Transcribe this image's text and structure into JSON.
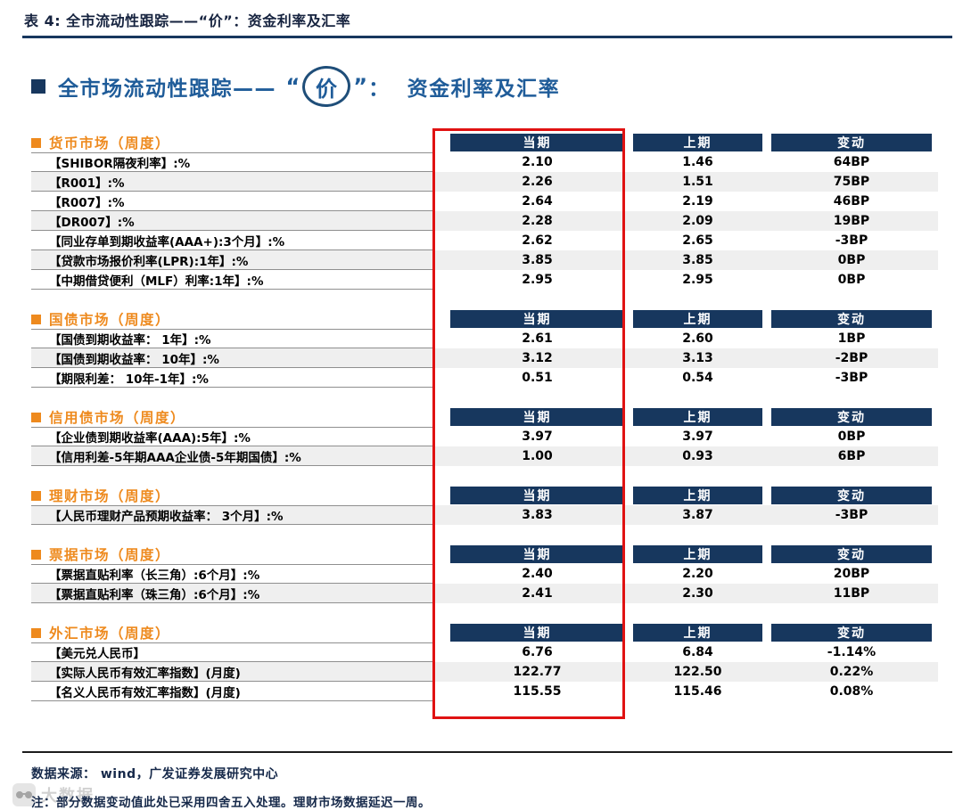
{
  "page": {
    "table_caption": "表 4:  全市流动性跟踪——“价”：资金利率及汇率",
    "heading": {
      "prefix": "全市场流动性跟踪—— ",
      "quote_open": "“",
      "circled_word": "价",
      "quote_close": "”",
      "suffix": "：  资金利率及汇率"
    }
  },
  "columns": [
    "当期",
    "上期",
    "变动"
  ],
  "sections": [
    {
      "title": "货币市场（周度）",
      "rows": [
        {
          "label": "【SHIBOR隔夜利率】:%",
          "current": "2.10",
          "previous": "1.46",
          "change": "64BP",
          "shaded": false
        },
        {
          "label": "【R001】:%",
          "current": "2.26",
          "previous": "1.51",
          "change": "75BP",
          "shaded": true
        },
        {
          "label": "【R007】:%",
          "current": "2.64",
          "previous": "2.19",
          "change": "46BP",
          "shaded": false
        },
        {
          "label": "【DR007】:%",
          "current": "2.28",
          "previous": "2.09",
          "change": "19BP",
          "shaded": true
        },
        {
          "label": "【同业存单到期收益率(AAA+):3个月】:%",
          "current": "2.62",
          "previous": "2.65",
          "change": "-3BP",
          "shaded": false
        },
        {
          "label": "【贷款市场报价利率(LPR):1年】:%",
          "current": "3.85",
          "previous": "3.85",
          "change": "0BP",
          "shaded": true
        },
        {
          "label": "【中期借贷便利（MLF）利率:1年】:%",
          "current": "2.95",
          "previous": "2.95",
          "change": "0BP",
          "shaded": false
        }
      ]
    },
    {
      "title": "国债市场（周度）",
      "rows": [
        {
          "label": "【国债到期收益率：  1年】:%",
          "current": "2.61",
          "previous": "2.60",
          "change": "1BP",
          "shaded": false
        },
        {
          "label": "【国债到期收益率：  10年】:%",
          "current": "3.12",
          "previous": "3.13",
          "change": "-2BP",
          "shaded": true
        },
        {
          "label": "【期限利差：  10年-1年】:%",
          "current": "0.51",
          "previous": "0.54",
          "change": "-3BP",
          "shaded": false
        }
      ]
    },
    {
      "title": "信用债市场（周度）",
      "rows": [
        {
          "label": "【企业债到期收益率(AAA):5年】:%",
          "current": "3.97",
          "previous": "3.97",
          "change": "0BP",
          "shaded": false
        },
        {
          "label": "【信用利差-5年期AAA企业债-5年期国债】:%",
          "current": "1.00",
          "previous": "0.93",
          "change": "6BP",
          "shaded": true
        }
      ]
    },
    {
      "title": "理财市场（周度）",
      "rows": [
        {
          "label": "【人民币理财产品预期收益率：  3个月】:%",
          "current": "3.83",
          "previous": "3.87",
          "change": "-3BP",
          "shaded": true
        }
      ]
    },
    {
      "title": "票据市场（周度）",
      "rows": [
        {
          "label": "【票据直贴利率（长三角）:6个月】:%",
          "current": "2.40",
          "previous": "2.20",
          "change": "20BP",
          "shaded": false
        },
        {
          "label": "【票据直贴利率（珠三角）:6个月】:%",
          "current": "2.41",
          "previous": "2.30",
          "change": "11BP",
          "shaded": true
        }
      ]
    },
    {
      "title": "外汇市场（周度）",
      "rows": [
        {
          "label": "【美元兑人民币】",
          "current": "6.76",
          "previous": "6.84",
          "change": "-1.14%",
          "shaded": false
        },
        {
          "label": "【实际人民币有效汇率指数】(月度)",
          "current": "122.77",
          "previous": "122.50",
          "change": "0.22%",
          "shaded": true
        },
        {
          "label": "【名义人民币有效汇率指数】(月度)",
          "current": "115.55",
          "previous": "115.46",
          "change": "0.08%",
          "shaded": false
        }
      ]
    }
  ],
  "footer": {
    "source": "数据来源：  wind，广发证券发展研究中心",
    "note": "注：部分数据变动值此处已采用四舍五入处理。理财市场数据延迟一周。"
  },
  "watermark": {
    "text": "大数据"
  },
  "colors": {
    "navy_header": "#17375E",
    "heading_blue": "#1F5C99",
    "section_orange": "#EE8A1E",
    "highlight_red": "#E01212",
    "row_shade": "#EFEFEF"
  }
}
